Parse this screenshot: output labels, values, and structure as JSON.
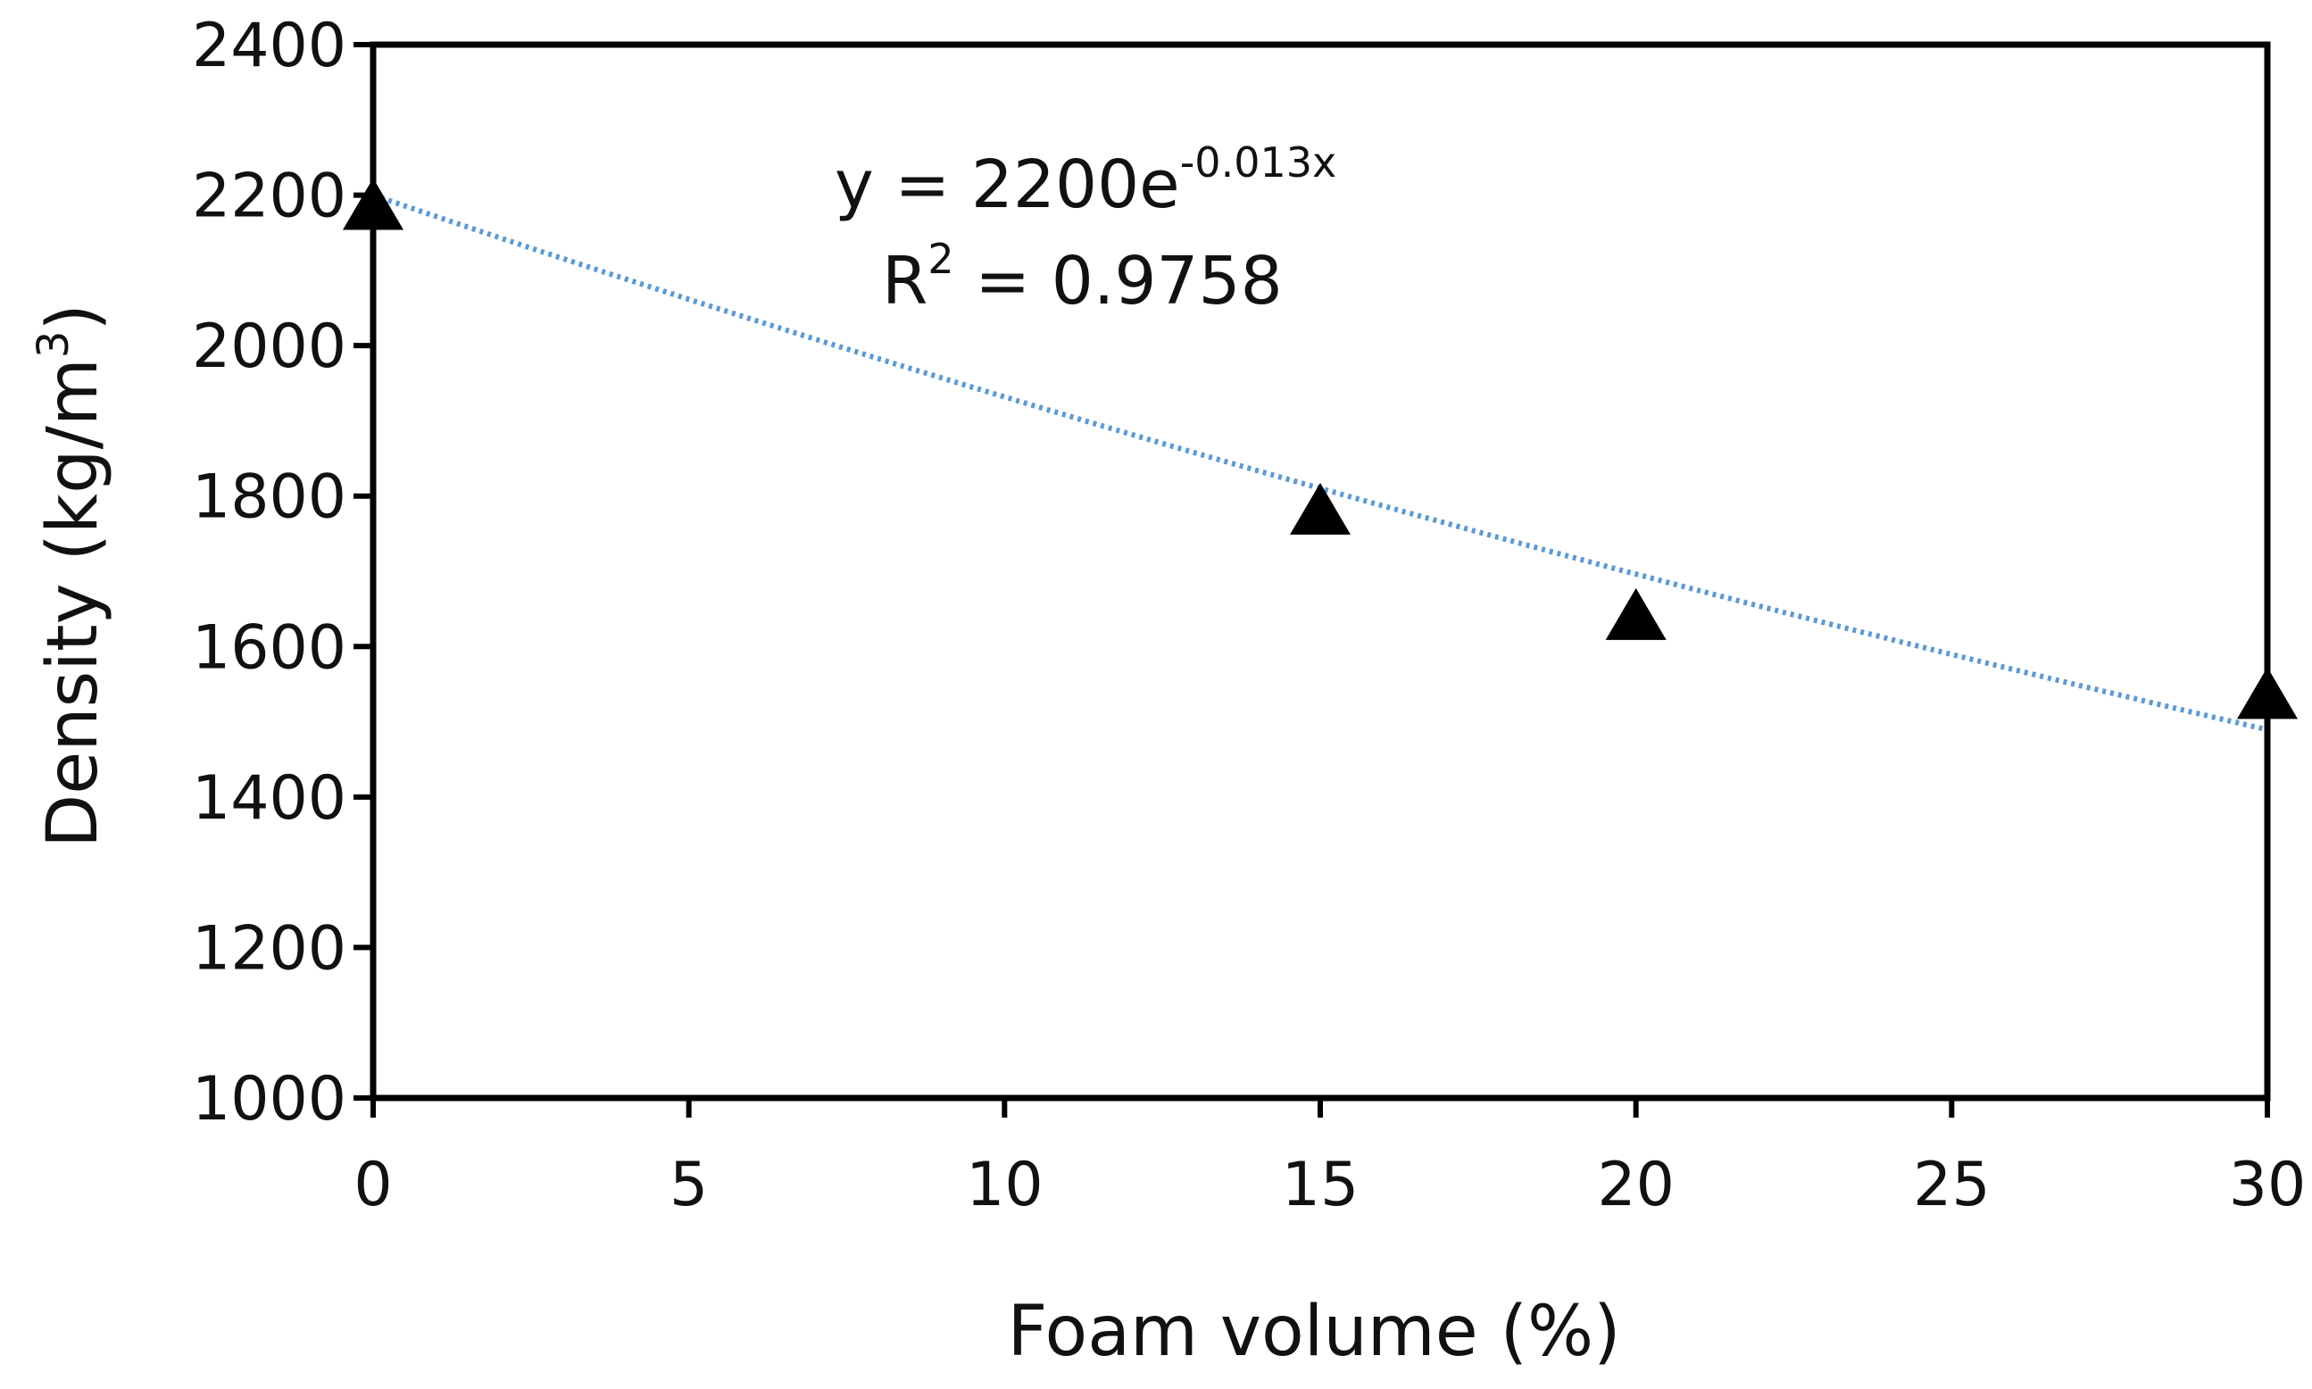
{
  "chart_data": {
    "type": "scatter",
    "title": "",
    "xlabel": "Foam volume (%)",
    "ylabel_main": "Density (kg/m",
    "ylabel_sup": "3",
    "ylabel_close": ")",
    "xlim": [
      0,
      30
    ],
    "ylim": [
      1000,
      2400
    ],
    "x_ticks": [
      0,
      5,
      10,
      15,
      20,
      25,
      30
    ],
    "y_ticks": [
      1000,
      1200,
      1400,
      1600,
      1800,
      2000,
      2200,
      2400
    ],
    "grid": false,
    "legend": "none",
    "series": [
      {
        "marker": "triangle",
        "color": "#000000",
        "points": [
          {
            "x": 0,
            "y": 2180
          },
          {
            "x": 15,
            "y": 1775
          },
          {
            "x": 20,
            "y": 1635
          },
          {
            "x": 30,
            "y": 1530
          }
        ]
      }
    ],
    "trendline": {
      "type": "exponential",
      "a": 2200,
      "b": -0.013,
      "color": "#5b9bd5",
      "style": "dotted"
    },
    "annotations": {
      "equation_prefix": "y = 2200e",
      "equation_exponent": "-0.013x",
      "r2_prefix": "R",
      "r2_sup": "2",
      "r2_rest": " = 0.9758"
    }
  }
}
